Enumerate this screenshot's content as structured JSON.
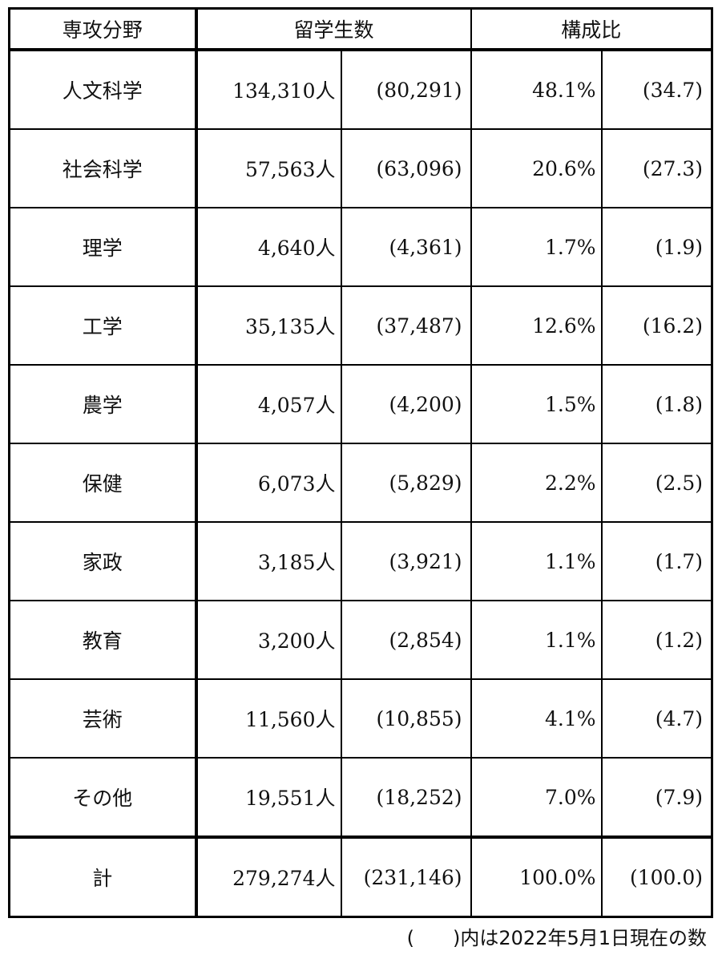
{
  "header": {
    "field": "専攻分野",
    "students": "留学生数",
    "ratio": "構成比"
  },
  "rows": [
    {
      "field": "人文科学",
      "students": "134,310人",
      "prev_students": "(80,291)",
      "ratio": "48.1%",
      "prev_ratio": "(34.7)"
    },
    {
      "field": "社会科学",
      "students": "57,563人",
      "prev_students": "(63,096)",
      "ratio": "20.6%",
      "prev_ratio": "(27.3)"
    },
    {
      "field": "理学",
      "students": "4,640人",
      "prev_students": "(4,361)",
      "ratio": "1.7%",
      "prev_ratio": "(1.9)"
    },
    {
      "field": "工学",
      "students": "35,135人",
      "prev_students": "(37,487)",
      "ratio": "12.6%",
      "prev_ratio": "(16.2)"
    },
    {
      "field": "農学",
      "students": "4,057人",
      "prev_students": "(4,200)",
      "ratio": "1.5%",
      "prev_ratio": "(1.8)"
    },
    {
      "field": "保健",
      "students": "6,073人",
      "prev_students": "(5,829)",
      "ratio": "2.2%",
      "prev_ratio": "(2.5)"
    },
    {
      "field": "家政",
      "students": "3,185人",
      "prev_students": "(3,921)",
      "ratio": "1.1%",
      "prev_ratio": "(1.7)"
    },
    {
      "field": "教育",
      "students": "3,200人",
      "prev_students": "(2,854)",
      "ratio": "1.1%",
      "prev_ratio": "(1.2)"
    },
    {
      "field": "芸術",
      "students": "11,560人",
      "prev_students": "(10,855)",
      "ratio": "4.1%",
      "prev_ratio": "(4.7)"
    },
    {
      "field": "その他",
      "students": "19,551人",
      "prev_students": "(18,252)",
      "ratio": "7.0%",
      "prev_ratio": "(7.9)"
    }
  ],
  "total": {
    "field": "計",
    "students": "279,274人",
    "prev_students": "(231,146)",
    "ratio": "100.0%",
    "prev_ratio": "(100.0)"
  },
  "note": "(　　)内は2022年5月1日現在の数"
}
